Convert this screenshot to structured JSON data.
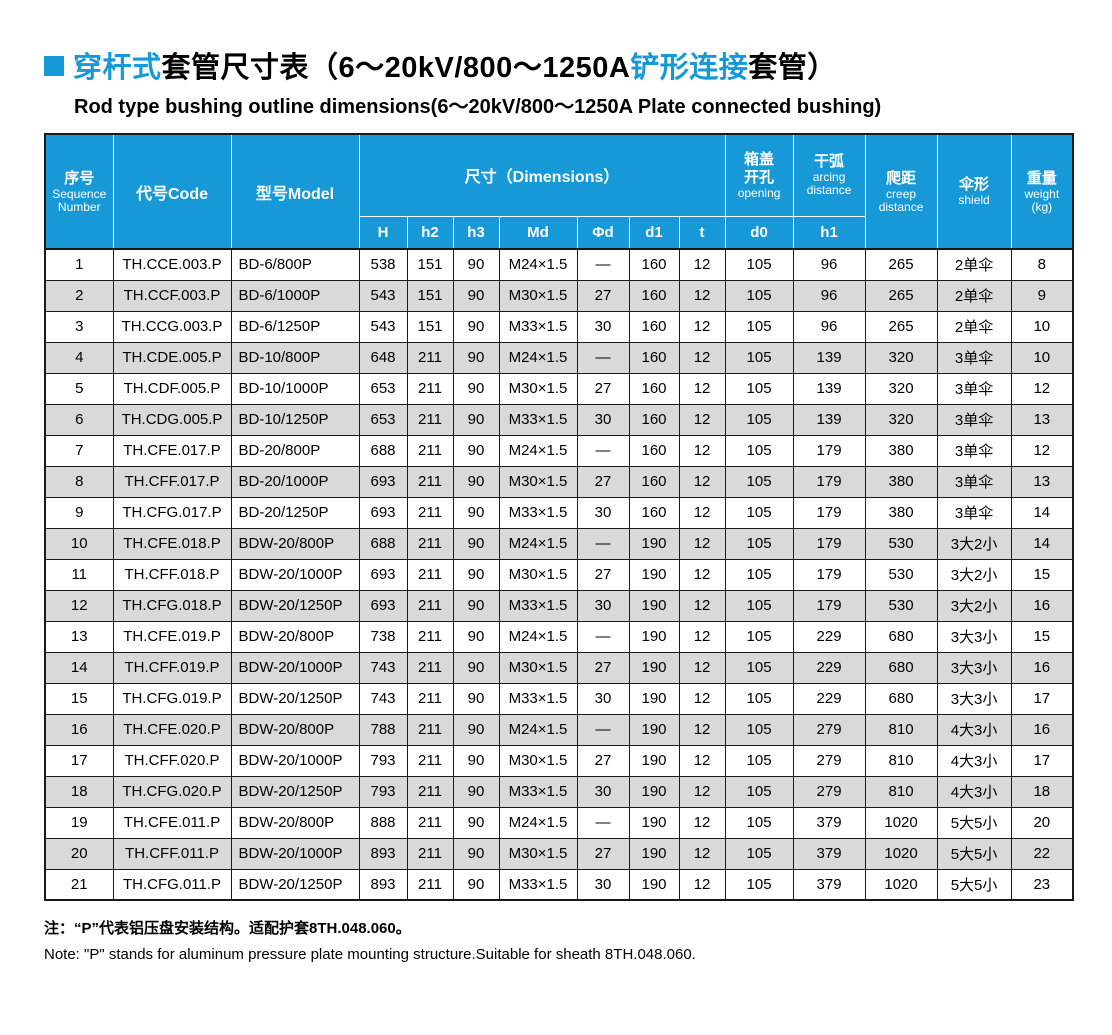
{
  "colors": {
    "accent": "#1699d6",
    "header_bg": "#1699d6",
    "header_text": "#ffffff",
    "row_alt": "#d9d9d9",
    "border_dark": "#1a1a1a"
  },
  "header": {
    "title_parts": [
      {
        "text": "穿杆式",
        "accent": true
      },
      {
        "text": "套管尺寸表（6～20kV/800～1250A",
        "accent": false
      },
      {
        "text": "铲形连接",
        "accent": true
      },
      {
        "text": "套管）",
        "accent": false
      }
    ],
    "subtitle": "Rod type bushing outline dimensions(6～20kV/800～1250A Plate connected bushing)"
  },
  "table": {
    "header": {
      "seq_cn": "序号",
      "seq_en1": "Sequence",
      "seq_en2": "Number",
      "code": "代号Code",
      "model": "型号Model",
      "dims": "尺寸（Dimensions）",
      "opening_cn1": "箱盖",
      "opening_cn2": "开孔",
      "opening_en": "opening",
      "arcing_cn": "干弧",
      "arcing_en1": "arcing",
      "arcing_en2": "distance",
      "creep_cn": "爬距",
      "creep_en1": "creep",
      "creep_en2": "distance",
      "shield_cn": "伞形",
      "shield_en": "shield",
      "weight_cn": "重量",
      "weight_en": "weight",
      "weight_unit": "(kg)"
    },
    "sub_headers": [
      "H",
      "h2",
      "h3",
      "Md",
      "Φd",
      "d1",
      "t",
      "d0",
      "h1"
    ],
    "sub_keys": [
      "H",
      "h2",
      "h3",
      "Md",
      "phi-d",
      "d1",
      "t",
      "d0",
      "h1"
    ],
    "col_keys": [
      "seq",
      "code",
      "model",
      "H",
      "h2",
      "h3",
      "Md",
      "phi-d",
      "d1",
      "t",
      "d0",
      "h1",
      "creep",
      "shield",
      "weight"
    ],
    "rows": [
      [
        "1",
        "TH.CCE.003.P",
        "BD-6/800P",
        "538",
        "151",
        "90",
        "M24×1.5",
        "—",
        "160",
        "12",
        "105",
        "96",
        "265",
        "2单伞",
        "8"
      ],
      [
        "2",
        "TH.CCF.003.P",
        "BD-6/1000P",
        "543",
        "151",
        "90",
        "M30×1.5",
        "27",
        "160",
        "12",
        "105",
        "96",
        "265",
        "2单伞",
        "9"
      ],
      [
        "3",
        "TH.CCG.003.P",
        "BD-6/1250P",
        "543",
        "151",
        "90",
        "M33×1.5",
        "30",
        "160",
        "12",
        "105",
        "96",
        "265",
        "2单伞",
        "10"
      ],
      [
        "4",
        "TH.CDE.005.P",
        "BD-10/800P",
        "648",
        "211",
        "90",
        "M24×1.5",
        "—",
        "160",
        "12",
        "105",
        "139",
        "320",
        "3单伞",
        "10"
      ],
      [
        "5",
        "TH.CDF.005.P",
        "BD-10/1000P",
        "653",
        "211",
        "90",
        "M30×1.5",
        "27",
        "160",
        "12",
        "105",
        "139",
        "320",
        "3单伞",
        "12"
      ],
      [
        "6",
        "TH.CDG.005.P",
        "BD-10/1250P",
        "653",
        "211",
        "90",
        "M33×1.5",
        "30",
        "160",
        "12",
        "105",
        "139",
        "320",
        "3单伞",
        "13"
      ],
      [
        "7",
        "TH.CFE.017.P",
        "BD-20/800P",
        "688",
        "211",
        "90",
        "M24×1.5",
        "—",
        "160",
        "12",
        "105",
        "179",
        "380",
        "3单伞",
        "12"
      ],
      [
        "8",
        "TH.CFF.017.P",
        "BD-20/1000P",
        "693",
        "211",
        "90",
        "M30×1.5",
        "27",
        "160",
        "12",
        "105",
        "179",
        "380",
        "3单伞",
        "13"
      ],
      [
        "9",
        "TH.CFG.017.P",
        "BD-20/1250P",
        "693",
        "211",
        "90",
        "M33×1.5",
        "30",
        "160",
        "12",
        "105",
        "179",
        "380",
        "3单伞",
        "14"
      ],
      [
        "10",
        "TH.CFE.018.P",
        "BDW-20/800P",
        "688",
        "211",
        "90",
        "M24×1.5",
        "—",
        "190",
        "12",
        "105",
        "179",
        "530",
        "3大2小",
        "14"
      ],
      [
        "11",
        "TH.CFF.018.P",
        "BDW-20/1000P",
        "693",
        "211",
        "90",
        "M30×1.5",
        "27",
        "190",
        "12",
        "105",
        "179",
        "530",
        "3大2小",
        "15"
      ],
      [
        "12",
        "TH.CFG.018.P",
        "BDW-20/1250P",
        "693",
        "211",
        "90",
        "M33×1.5",
        "30",
        "190",
        "12",
        "105",
        "179",
        "530",
        "3大2小",
        "16"
      ],
      [
        "13",
        "TH.CFE.019.P",
        "BDW-20/800P",
        "738",
        "211",
        "90",
        "M24×1.5",
        "—",
        "190",
        "12",
        "105",
        "229",
        "680",
        "3大3小",
        "15"
      ],
      [
        "14",
        "TH.CFF.019.P",
        "BDW-20/1000P",
        "743",
        "211",
        "90",
        "M30×1.5",
        "27",
        "190",
        "12",
        "105",
        "229",
        "680",
        "3大3小",
        "16"
      ],
      [
        "15",
        "TH.CFG.019.P",
        "BDW-20/1250P",
        "743",
        "211",
        "90",
        "M33×1.5",
        "30",
        "190",
        "12",
        "105",
        "229",
        "680",
        "3大3小",
        "17"
      ],
      [
        "16",
        "TH.CFE.020.P",
        "BDW-20/800P",
        "788",
        "211",
        "90",
        "M24×1.5",
        "—",
        "190",
        "12",
        "105",
        "279",
        "810",
        "4大3小",
        "16"
      ],
      [
        "17",
        "TH.CFF.020.P",
        "BDW-20/1000P",
        "793",
        "211",
        "90",
        "M30×1.5",
        "27",
        "190",
        "12",
        "105",
        "279",
        "810",
        "4大3小",
        "17"
      ],
      [
        "18",
        "TH.CFG.020.P",
        "BDW-20/1250P",
        "793",
        "211",
        "90",
        "M33×1.5",
        "30",
        "190",
        "12",
        "105",
        "279",
        "810",
        "4大3小",
        "18"
      ],
      [
        "19",
        "TH.CFE.011.P",
        "BDW-20/800P",
        "888",
        "211",
        "90",
        "M24×1.5",
        "—",
        "190",
        "12",
        "105",
        "379",
        "1020",
        "5大5小",
        "20"
      ],
      [
        "20",
        "TH.CFF.011.P",
        "BDW-20/1000P",
        "893",
        "211",
        "90",
        "M30×1.5",
        "27",
        "190",
        "12",
        "105",
        "379",
        "1020",
        "5大5小",
        "22"
      ],
      [
        "21",
        "TH.CFG.011.P",
        "BDW-20/1250P",
        "893",
        "211",
        "90",
        "M33×1.5",
        "30",
        "190",
        "12",
        "105",
        "379",
        "1020",
        "5大5小",
        "23"
      ]
    ]
  },
  "notes": {
    "cn": "注：“P”代表铝压盘安装结构。适配护套8TH.048.060。",
    "en": "Note: \"P\" stands for aluminum pressure plate mounting structure.Suitable for sheath 8TH.048.060."
  }
}
